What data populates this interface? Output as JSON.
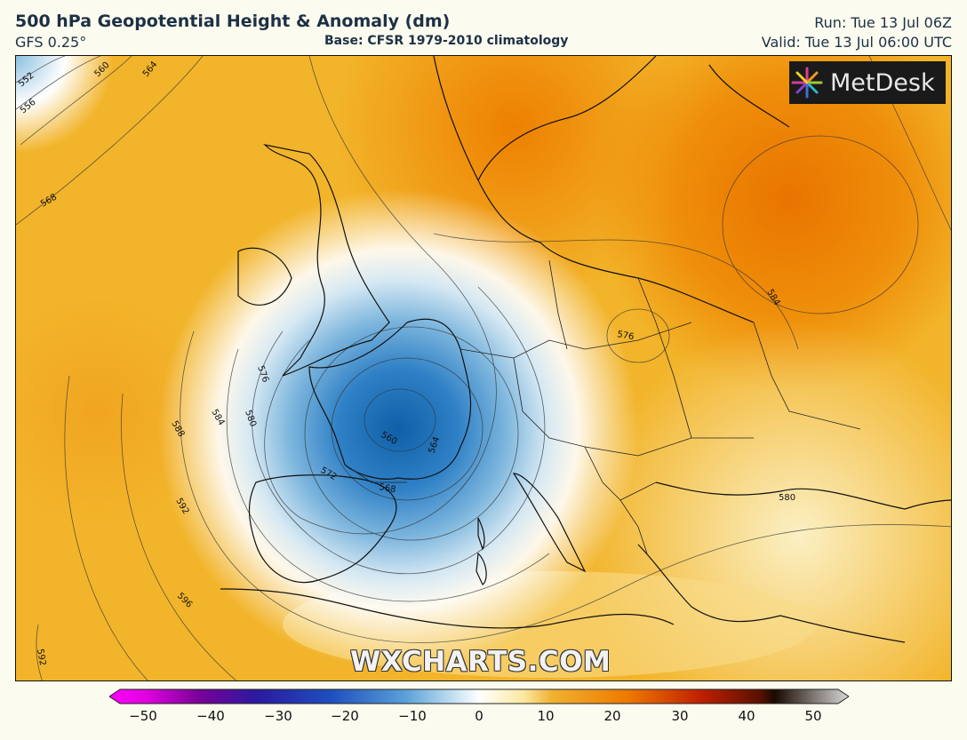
{
  "header": {
    "title": "500 hPa Geopotential Height & Anomaly (dm)",
    "model": "GFS 0.25°",
    "base": "Base: CFSR 1979-2010 climatology",
    "run": "Run: Tue 13 Jul 06Z",
    "valid": "Valid: Tue 13 Jul 06:00 UTC"
  },
  "logo": {
    "text": "MetDesk",
    "icon": "pinwheel-logo-icon"
  },
  "watermark": "WXCHARTS.COM",
  "contour_labels": [
    "552",
    "556",
    "560",
    "564",
    "568",
    "576",
    "580",
    "584",
    "588",
    "592",
    "596",
    "576",
    "580",
    "592",
    "560",
    "564",
    "568",
    "572",
    "584"
  ],
  "colorbar": {
    "ticks": [
      "−50",
      "−40",
      "−30",
      "−20",
      "−10",
      "0",
      "10",
      "20",
      "30",
      "40",
      "50"
    ],
    "colors": [
      "#ff00ff",
      "#7a0099",
      "#1a1a99",
      "#1f4fbf",
      "#5aa0d8",
      "#ffffff",
      "#f0b030",
      "#ee7a00",
      "#c02000",
      "#3a0f00",
      "#bdbdbd"
    ]
  }
}
